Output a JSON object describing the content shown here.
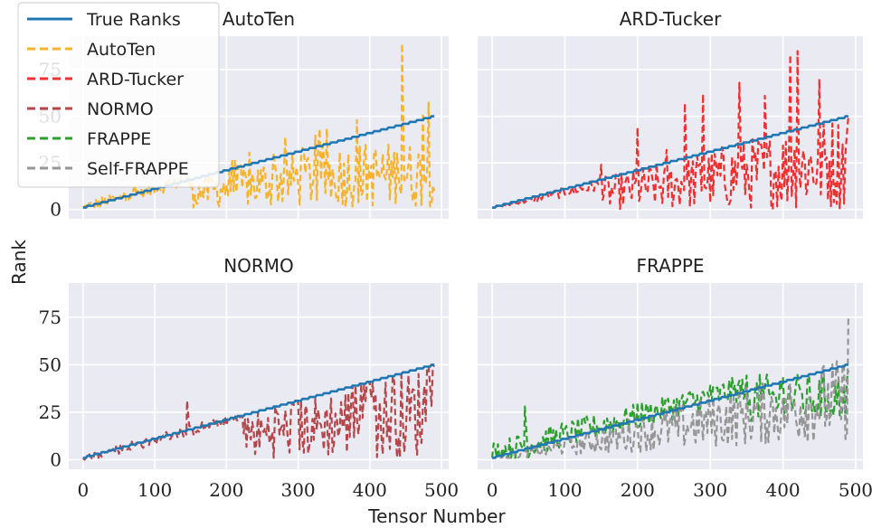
{
  "figure": {
    "ylabel": "Rank",
    "xlabel": "Tensor Number"
  },
  "legend": {
    "placement": "top-left",
    "entries": [
      {
        "label": "True Ranks",
        "color": "#1f77b4",
        "dash": "solid"
      },
      {
        "label": "AutoTen",
        "color": "#f7b32b",
        "dash": "dashed"
      },
      {
        "label": "ARD-Tucker",
        "color": "#f03030",
        "dash": "dashed"
      },
      {
        "label": "NORMO",
        "color": "#b5474b",
        "dash": "dashed"
      },
      {
        "label": "FRAPPE",
        "color": "#2ca02c",
        "dash": "dashed"
      },
      {
        "label": "Self-FRAPPE",
        "color": "#969696",
        "dash": "dashed"
      }
    ]
  },
  "chart_data": [
    {
      "type": "line",
      "title": "AutoTen",
      "xlim": [
        -20,
        510
      ],
      "ylim": [
        -5,
        93
      ],
      "xticks": [
        0,
        100,
        200,
        300,
        400,
        500
      ],
      "yticks": [
        0,
        25,
        50,
        75
      ],
      "grid": true,
      "series": [
        {
          "name": "True Ranks",
          "x": [
            0,
            100,
            200,
            300,
            400,
            490
          ],
          "y": [
            1,
            11,
            21,
            31,
            41,
            50
          ]
        },
        {
          "name": "AutoTen",
          "x": [
            0,
            50,
            100,
            150,
            200,
            250,
            300,
            350,
            400,
            440,
            445,
            490
          ],
          "y": [
            1,
            6,
            9,
            11,
            13,
            14,
            14,
            15,
            16,
            18,
            89,
            10
          ]
        }
      ]
    },
    {
      "type": "line",
      "title": "ARD-Tucker",
      "xlim": [
        -20,
        510
      ],
      "ylim": [
        -5,
        93
      ],
      "xticks": [
        0,
        100,
        200,
        300,
        400,
        500
      ],
      "yticks": [
        0,
        25,
        50,
        75
      ],
      "grid": true,
      "series": [
        {
          "name": "True Ranks",
          "x": [
            0,
            100,
            200,
            300,
            400,
            490
          ],
          "y": [
            1,
            11,
            21,
            31,
            41,
            50
          ]
        },
        {
          "name": "ARD-Tucker",
          "x": [
            0,
            100,
            200,
            340,
            410,
            420,
            490
          ],
          "y": [
            1,
            8,
            13,
            68,
            83,
            85,
            50
          ]
        }
      ]
    },
    {
      "type": "line",
      "title": "NORMO",
      "xlim": [
        -20,
        510
      ],
      "ylim": [
        -5,
        93
      ],
      "xticks": [
        0,
        100,
        200,
        300,
        400,
        500
      ],
      "yticks": [
        0,
        25,
        50,
        75
      ],
      "grid": true,
      "series": [
        {
          "name": "True Ranks",
          "x": [
            0,
            100,
            200,
            300,
            400,
            490
          ],
          "y": [
            1,
            11,
            21,
            31,
            41,
            50
          ]
        },
        {
          "name": "NORMO",
          "x": [
            0,
            100,
            145,
            200,
            300,
            400,
            490
          ],
          "y": [
            1,
            10,
            31,
            18,
            30,
            40,
            49
          ]
        }
      ]
    },
    {
      "type": "line",
      "title": "FRAPPE",
      "xlim": [
        -20,
        510
      ],
      "ylim": [
        -5,
        93
      ],
      "xticks": [
        0,
        100,
        200,
        300,
        400,
        500
      ],
      "yticks": [
        0,
        25,
        50,
        75
      ],
      "grid": true,
      "series": [
        {
          "name": "True Ranks",
          "x": [
            0,
            100,
            200,
            300,
            400,
            490
          ],
          "y": [
            1,
            11,
            21,
            31,
            41,
            50
          ]
        },
        {
          "name": "FRAPPE",
          "x": [
            0,
            45,
            100,
            200,
            300,
            400,
            490
          ],
          "y": [
            1,
            28,
            16,
            30,
            39,
            43,
            47
          ]
        },
        {
          "name": "Self-FRAPPE",
          "x": [
            0,
            100,
            200,
            300,
            400,
            490
          ],
          "y": [
            1,
            10,
            18,
            25,
            32,
            75
          ]
        }
      ]
    }
  ]
}
